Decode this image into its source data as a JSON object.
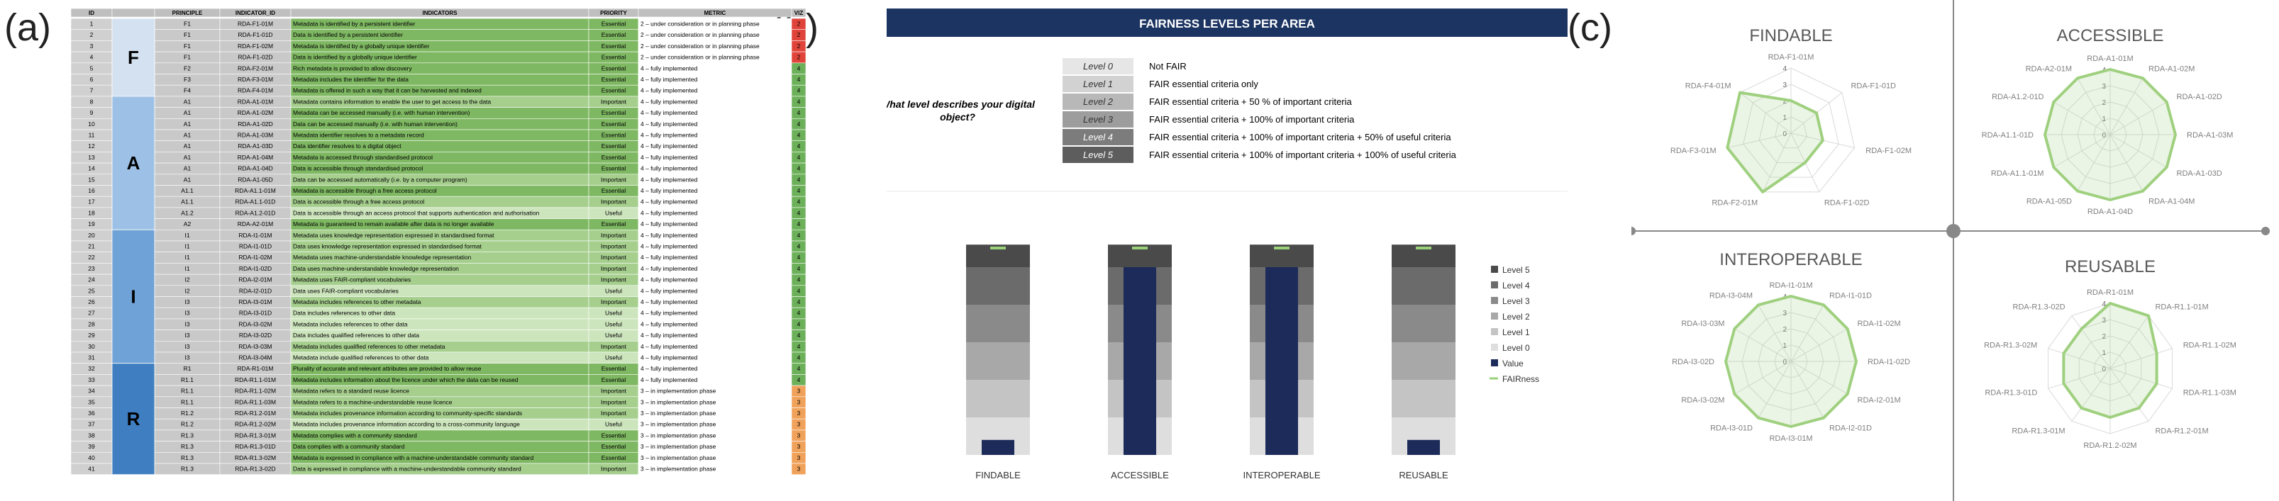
{
  "panels": {
    "a": "(a)",
    "b": "(b)",
    "c": "(c)"
  },
  "table": {
    "headers": [
      "ID",
      "",
      "PRINCIPLE",
      "INDICATOR_ID",
      "INDICATORS",
      "PRIORITY",
      "METRIC",
      "VIZ"
    ],
    "groups": [
      {
        "letter": "F",
        "from": 1,
        "to": 7
      },
      {
        "letter": "A",
        "from": 8,
        "to": 19
      },
      {
        "letter": "I",
        "from": 20,
        "to": 31
      },
      {
        "letter": "R",
        "from": 32,
        "to": 41
      }
    ],
    "rows": [
      [
        "1",
        "F1",
        "RDA-F1-01M",
        "Metadata is identified by a persistent identifier",
        "Essential",
        "2 – under consideration or in planning phase",
        "2"
      ],
      [
        "2",
        "F1",
        "RDA-F1-01D",
        "Data is identified by a persistent identifier",
        "Essential",
        "2 – under consideration or in planning phase",
        "2"
      ],
      [
        "3",
        "F1",
        "RDA-F1-02M",
        "Metadata is identified by a globally unique identifier",
        "Essential",
        "2 – under consideration or in planning phase",
        "2"
      ],
      [
        "4",
        "F1",
        "RDA-F1-02D",
        "Data is identified by a globally unique identifier",
        "Essential",
        "2 – under consideration or in planning phase",
        "2"
      ],
      [
        "5",
        "F2",
        "RDA-F2-01M",
        "Rich metadata is provided to allow discovery",
        "Essential",
        "4 – fully implemented",
        "4"
      ],
      [
        "6",
        "F3",
        "RDA-F3-01M",
        "Metadata includes the identifier for the data",
        "Essential",
        "4 – fully implemented",
        "4"
      ],
      [
        "7",
        "F4",
        "RDA-F4-01M",
        "Metadata is offered in such a way that it can be harvested and indexed",
        "Essential",
        "4 – fully implemented",
        "4"
      ],
      [
        "8",
        "A1",
        "RDA-A1-01M",
        "Metadata contains information to enable the user to get access to the data",
        "Important",
        "4 – fully implemented",
        "4"
      ],
      [
        "9",
        "A1",
        "RDA-A1-02M",
        "Metadata can be accessed manually (i.e. with human intervention)",
        "Essential",
        "4 – fully implemented",
        "4"
      ],
      [
        "10",
        "A1",
        "RDA-A1-02D",
        "Data can be accessed manually (i.e. with human intervention)",
        "Essential",
        "4 – fully implemented",
        "4"
      ],
      [
        "11",
        "A1",
        "RDA-A1-03M",
        "Metadata identifier resolves to a metadata record",
        "Essential",
        "4 – fully implemented",
        "4"
      ],
      [
        "12",
        "A1",
        "RDA-A1-03D",
        "Data identifier resolves to a digital object",
        "Essential",
        "4 – fully implemented",
        "4"
      ],
      [
        "13",
        "A1",
        "RDA-A1-04M",
        "Metadata is accessed through standardised protocol",
        "Essential",
        "4 – fully implemented",
        "4"
      ],
      [
        "14",
        "A1",
        "RDA-A1-04D",
        "Data is accessible through standardised protocol",
        "Essential",
        "4 – fully implemented",
        "4"
      ],
      [
        "15",
        "A1",
        "RDA-A1-05D",
        "Data can be accessed automatically (i.e. by a computer program)",
        "Important",
        "4 – fully implemented",
        "4"
      ],
      [
        "16",
        "A1.1",
        "RDA-A1.1-01M",
        "Metadata is accessible through a free access protocol",
        "Essential",
        "4 – fully implemented",
        "4"
      ],
      [
        "17",
        "A1.1",
        "RDA-A1.1-01D",
        "Data is accessible through a free access protocol",
        "Important",
        "4 – fully implemented",
        "4"
      ],
      [
        "18",
        "A1.2",
        "RDA-A1.2-01D",
        "Data is accessible through an access protocol that supports authentication and authorisation",
        "Useful",
        "4 – fully implemented",
        "4"
      ],
      [
        "19",
        "A2",
        "RDA-A2-01M",
        "Metadata is guaranteed to remain available after data is no longer available",
        "Essential",
        "4 – fully implemented",
        "4"
      ],
      [
        "20",
        "I1",
        "RDA-I1-01M",
        "Metadata uses knowledge representation expressed in standardised format",
        "Important",
        "4 – fully implemented",
        "4"
      ],
      [
        "21",
        "I1",
        "RDA-I1-01D",
        "Data uses knowledge representation expressed in standardised format",
        "Important",
        "4 – fully implemented",
        "4"
      ],
      [
        "22",
        "I1",
        "RDA-I1-02M",
        "Metadata uses machine-understandable knowledge representation",
        "Important",
        "4 – fully implemented",
        "4"
      ],
      [
        "23",
        "I1",
        "RDA-I1-02D",
        "Data uses machine-understandable knowledge representation",
        "Important",
        "4 – fully implemented",
        "4"
      ],
      [
        "24",
        "I2",
        "RDA-I2-01M",
        "Metadata uses FAIR-compliant vocabularies",
        "Important",
        "4 – fully implemented",
        "4"
      ],
      [
        "25",
        "I2",
        "RDA-I2-01D",
        "Data uses FAIR-compliant vocabularies",
        "Useful",
        "4 – fully implemented",
        "4"
      ],
      [
        "26",
        "I3",
        "RDA-I3-01M",
        "Metadata includes references to other metadata",
        "Important",
        "4 – fully implemented",
        "4"
      ],
      [
        "27",
        "I3",
        "RDA-I3-01D",
        "Data includes references to other data",
        "Useful",
        "4 – fully implemented",
        "4"
      ],
      [
        "28",
        "I3",
        "RDA-I3-02M",
        "Metadata includes references to other data",
        "Useful",
        "4 – fully implemented",
        "4"
      ],
      [
        "29",
        "I3",
        "RDA-I3-02D",
        "Data includes qualified references to other data",
        "Useful",
        "4 – fully implemented",
        "4"
      ],
      [
        "30",
        "I3",
        "RDA-I3-03M",
        "Metadata includes qualified references to other metadata",
        "Important",
        "4 – fully implemented",
        "4"
      ],
      [
        "31",
        "I3",
        "RDA-I3-04M",
        "Metadata include qualified references to other data",
        "Useful",
        "4 – fully implemented",
        "4"
      ],
      [
        "32",
        "R1",
        "RDA-R1-01M",
        "Plurality of accurate and relevant attributes are provided to allow reuse",
        "Essential",
        "4 – fully implemented",
        "4"
      ],
      [
        "33",
        "R1.1",
        "RDA-R1.1-01M",
        "Metadata includes information about the licence under which the data can be reused",
        "Essential",
        "4 – fully implemented",
        "4"
      ],
      [
        "34",
        "R1.1",
        "RDA-R1.1-02M",
        "Metadata refers to a standard reuse licence",
        "Important",
        "3 – in implementation phase",
        "3"
      ],
      [
        "35",
        "R1.1",
        "RDA-R1.1-03M",
        "Metadata refers to a machine-understandable reuse licence",
        "Important",
        "3 – in implementation phase",
        "3"
      ],
      [
        "36",
        "R1.2",
        "RDA-R1.2-01M",
        "Metadata includes provenance information according to community-specific standards",
        "Important",
        "3 – in implementation phase",
        "3"
      ],
      [
        "37",
        "R1.2",
        "RDA-R1.2-02M",
        "Metadata includes provenance information according to a cross-community language",
        "Useful",
        "3 – in implementation phase",
        "3"
      ],
      [
        "38",
        "R1.3",
        "RDA-R1.3-01M",
        "Metadata complies with a community standard",
        "Essential",
        "3 – in implementation phase",
        "3"
      ],
      [
        "39",
        "R1.3",
        "RDA-R1.3-01D",
        "Data complies with a community standard",
        "Essential",
        "3 – in implementation phase",
        "3"
      ],
      [
        "40",
        "R1.3",
        "RDA-R1.3-02M",
        "Metadata is expressed in compliance with a machine-understandable community standard",
        "Essential",
        "3 – in implementation phase",
        "3"
      ],
      [
        "41",
        "R1.3",
        "RDA-R1.3-02D",
        "Data is expressed in compliance with a machine-understandable community standard",
        "Important",
        "3 – in implementation phase",
        "3"
      ]
    ],
    "colors": {
      "essential": "#7fb862",
      "important": "#a6cf8e",
      "useful": "#cde5bd",
      "viz2": "#e0433a",
      "viz3": "#f0a15a",
      "viz4": "#6db05a",
      "F": "#d3e1f1",
      "A": "#9dc1e6",
      "I": "#6fa2d6",
      "R": "#3f7fc1"
    }
  },
  "fairness": {
    "title": "FAIRNESS LEVELS PER AREA",
    "question": "What level describes your digital object?",
    "levels": [
      {
        "name": "Level 0",
        "desc": "Not FAIR"
      },
      {
        "name": "Level 1",
        "desc": "FAIR essential criteria only"
      },
      {
        "name": "Level 2",
        "desc": "FAIR essential criteria + 50 % of important criteria"
      },
      {
        "name": "Level 3",
        "desc": "FAIR essential criteria + 100% of important criteria"
      },
      {
        "name": "Level 4",
        "desc": "FAIR essential criteria + 100% of important criteria + 50% of useful criteria"
      },
      {
        "name": "Level 5",
        "desc": "FAIR essential criteria + 100% of important criteria + 100% of useful criteria"
      }
    ],
    "legend": [
      "Level 5",
      "Level 4",
      "Level 3",
      "Level 2",
      "Level 1",
      "Level 0",
      "Value",
      "FAIRness"
    ],
    "colors": {
      "title_bg": "#1c3461",
      "value": "#1c2b5a",
      "fairness": "#9ad27a",
      "band5": "#4a4a4a",
      "band4": "#6b6b6b",
      "band3": "#8a8a8a",
      "band2": "#a8a8a8",
      "band1": "#c4c4c4",
      "band0": "#dedede"
    }
  },
  "chart_data": [
    {
      "type": "bar",
      "title": "FAIRNESS LEVELS PER AREA",
      "categories": [
        "FINDABLE",
        "ACCESSIBLE",
        "INTEROPERABLE",
        "REUSABLE"
      ],
      "series": [
        {
          "name": "Value",
          "values": [
            0.4,
            5,
            5,
            0.4
          ]
        },
        {
          "name": "FAIRness",
          "values": [
            5,
            5,
            5,
            5
          ]
        }
      ],
      "ylim": [
        0,
        5.6
      ]
    },
    {
      "type": "radar",
      "title": "FINDABLE",
      "categories": [
        "RDA-F1-01M",
        "RDA-F1-01D",
        "RDA-F1-02M",
        "RDA-F1-02D",
        "RDA-F2-01M",
        "RDA-F3-01M",
        "RDA-F4-01M"
      ],
      "values": [
        2,
        2,
        2,
        2,
        4,
        4,
        4
      ],
      "ticks": [
        "0",
        "1",
        "2",
        "3",
        "4"
      ],
      "rlim": [
        0,
        4
      ]
    },
    {
      "type": "radar",
      "title": "ACCESSIBLE",
      "categories": [
        "RDA-A1-01M",
        "RDA-A1-02M",
        "RDA-A1-02D",
        "RDA-A1-03M",
        "RDA-A1-03D",
        "RDA-A1-04M",
        "RDA-A1-04D",
        "RDA-A1-05D",
        "RDA-A1.1-01M",
        "RDA-A1.1-01D",
        "RDA-A1.2-01D",
        "RDA-A2-01M"
      ],
      "values": [
        4,
        4,
        4,
        4,
        4,
        4,
        4,
        4,
        4,
        4,
        4,
        4
      ],
      "ticks": [
        "0",
        "1",
        "2",
        "3",
        "4"
      ],
      "rlim": [
        0,
        4
      ]
    },
    {
      "type": "radar",
      "title": "INTEROPERABLE",
      "categories": [
        "RDA-I1-01M",
        "RDA-I1-01D",
        "RDA-I1-02M",
        "RDA-I1-02D",
        "RDA-I2-01M",
        "RDA-I2-01D",
        "RDA-I3-01M",
        "RDA-I3-01D",
        "RDA-I3-02M",
        "RDA-I3-02D",
        "RDA-I3-03M",
        "RDA-I3-04M"
      ],
      "values": [
        4,
        4,
        4,
        4,
        4,
        4,
        4,
        4,
        4,
        4,
        4,
        4
      ],
      "ticks": [
        "0",
        "1",
        "2",
        "3",
        "4"
      ],
      "rlim": [
        0,
        4
      ]
    },
    {
      "type": "radar",
      "title": "REUSABLE",
      "categories": [
        "RDA-R1-01M",
        "RDA-R1.1-01M",
        "RDA-R1.1-02M",
        "RDA-R1.1-03M",
        "RDA-R1.2-01M",
        "RDA-R1.2-02M",
        "RDA-R1.3-01M",
        "RDA-R1.3-01D",
        "RDA-R1.3-02M",
        "RDA-R1.3-02D"
      ],
      "values": [
        4,
        4,
        3,
        3,
        3,
        3,
        3,
        3,
        3,
        3
      ],
      "ticks": [
        "0",
        "1",
        "2",
        "3",
        "4"
      ],
      "rlim": [
        0,
        4
      ]
    }
  ]
}
